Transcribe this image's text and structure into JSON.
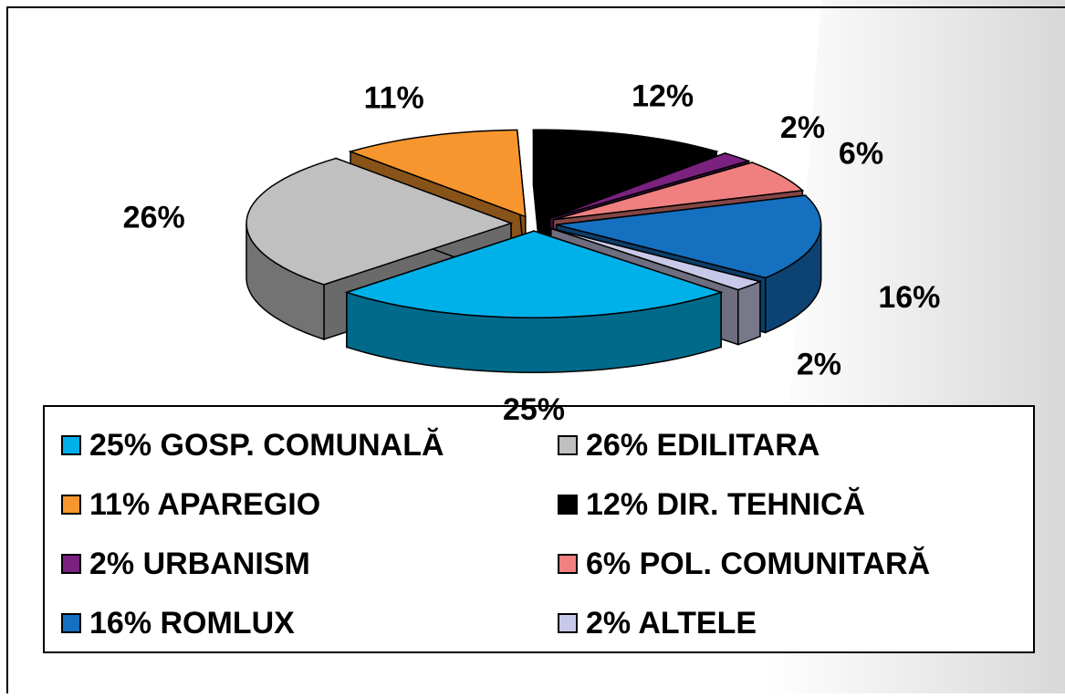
{
  "chart_data": {
    "type": "pie",
    "categories": [
      "25% GOSP. COMUNALĂ",
      "26% EDILITARA",
      "11% APAREGIO",
      "12% DIR. TEHNICĂ",
      "2% URBANISM",
      "6% POL. COMUNITARĂ",
      "16% ROMLUX",
      "2% ALTELE"
    ],
    "values": [
      25,
      26,
      11,
      12,
      2,
      6,
      16,
      2
    ],
    "value_labels": [
      "25%",
      "26%",
      "11%",
      "12%",
      "2%",
      "6%",
      "16%",
      "2%"
    ],
    "colors": [
      "#00b0e8",
      "#c0c0c0",
      "#f7962e",
      "#000000",
      "#7b2180",
      "#f08080",
      "#1570c0",
      "#c8c8e8"
    ],
    "legend": "bottom"
  }
}
